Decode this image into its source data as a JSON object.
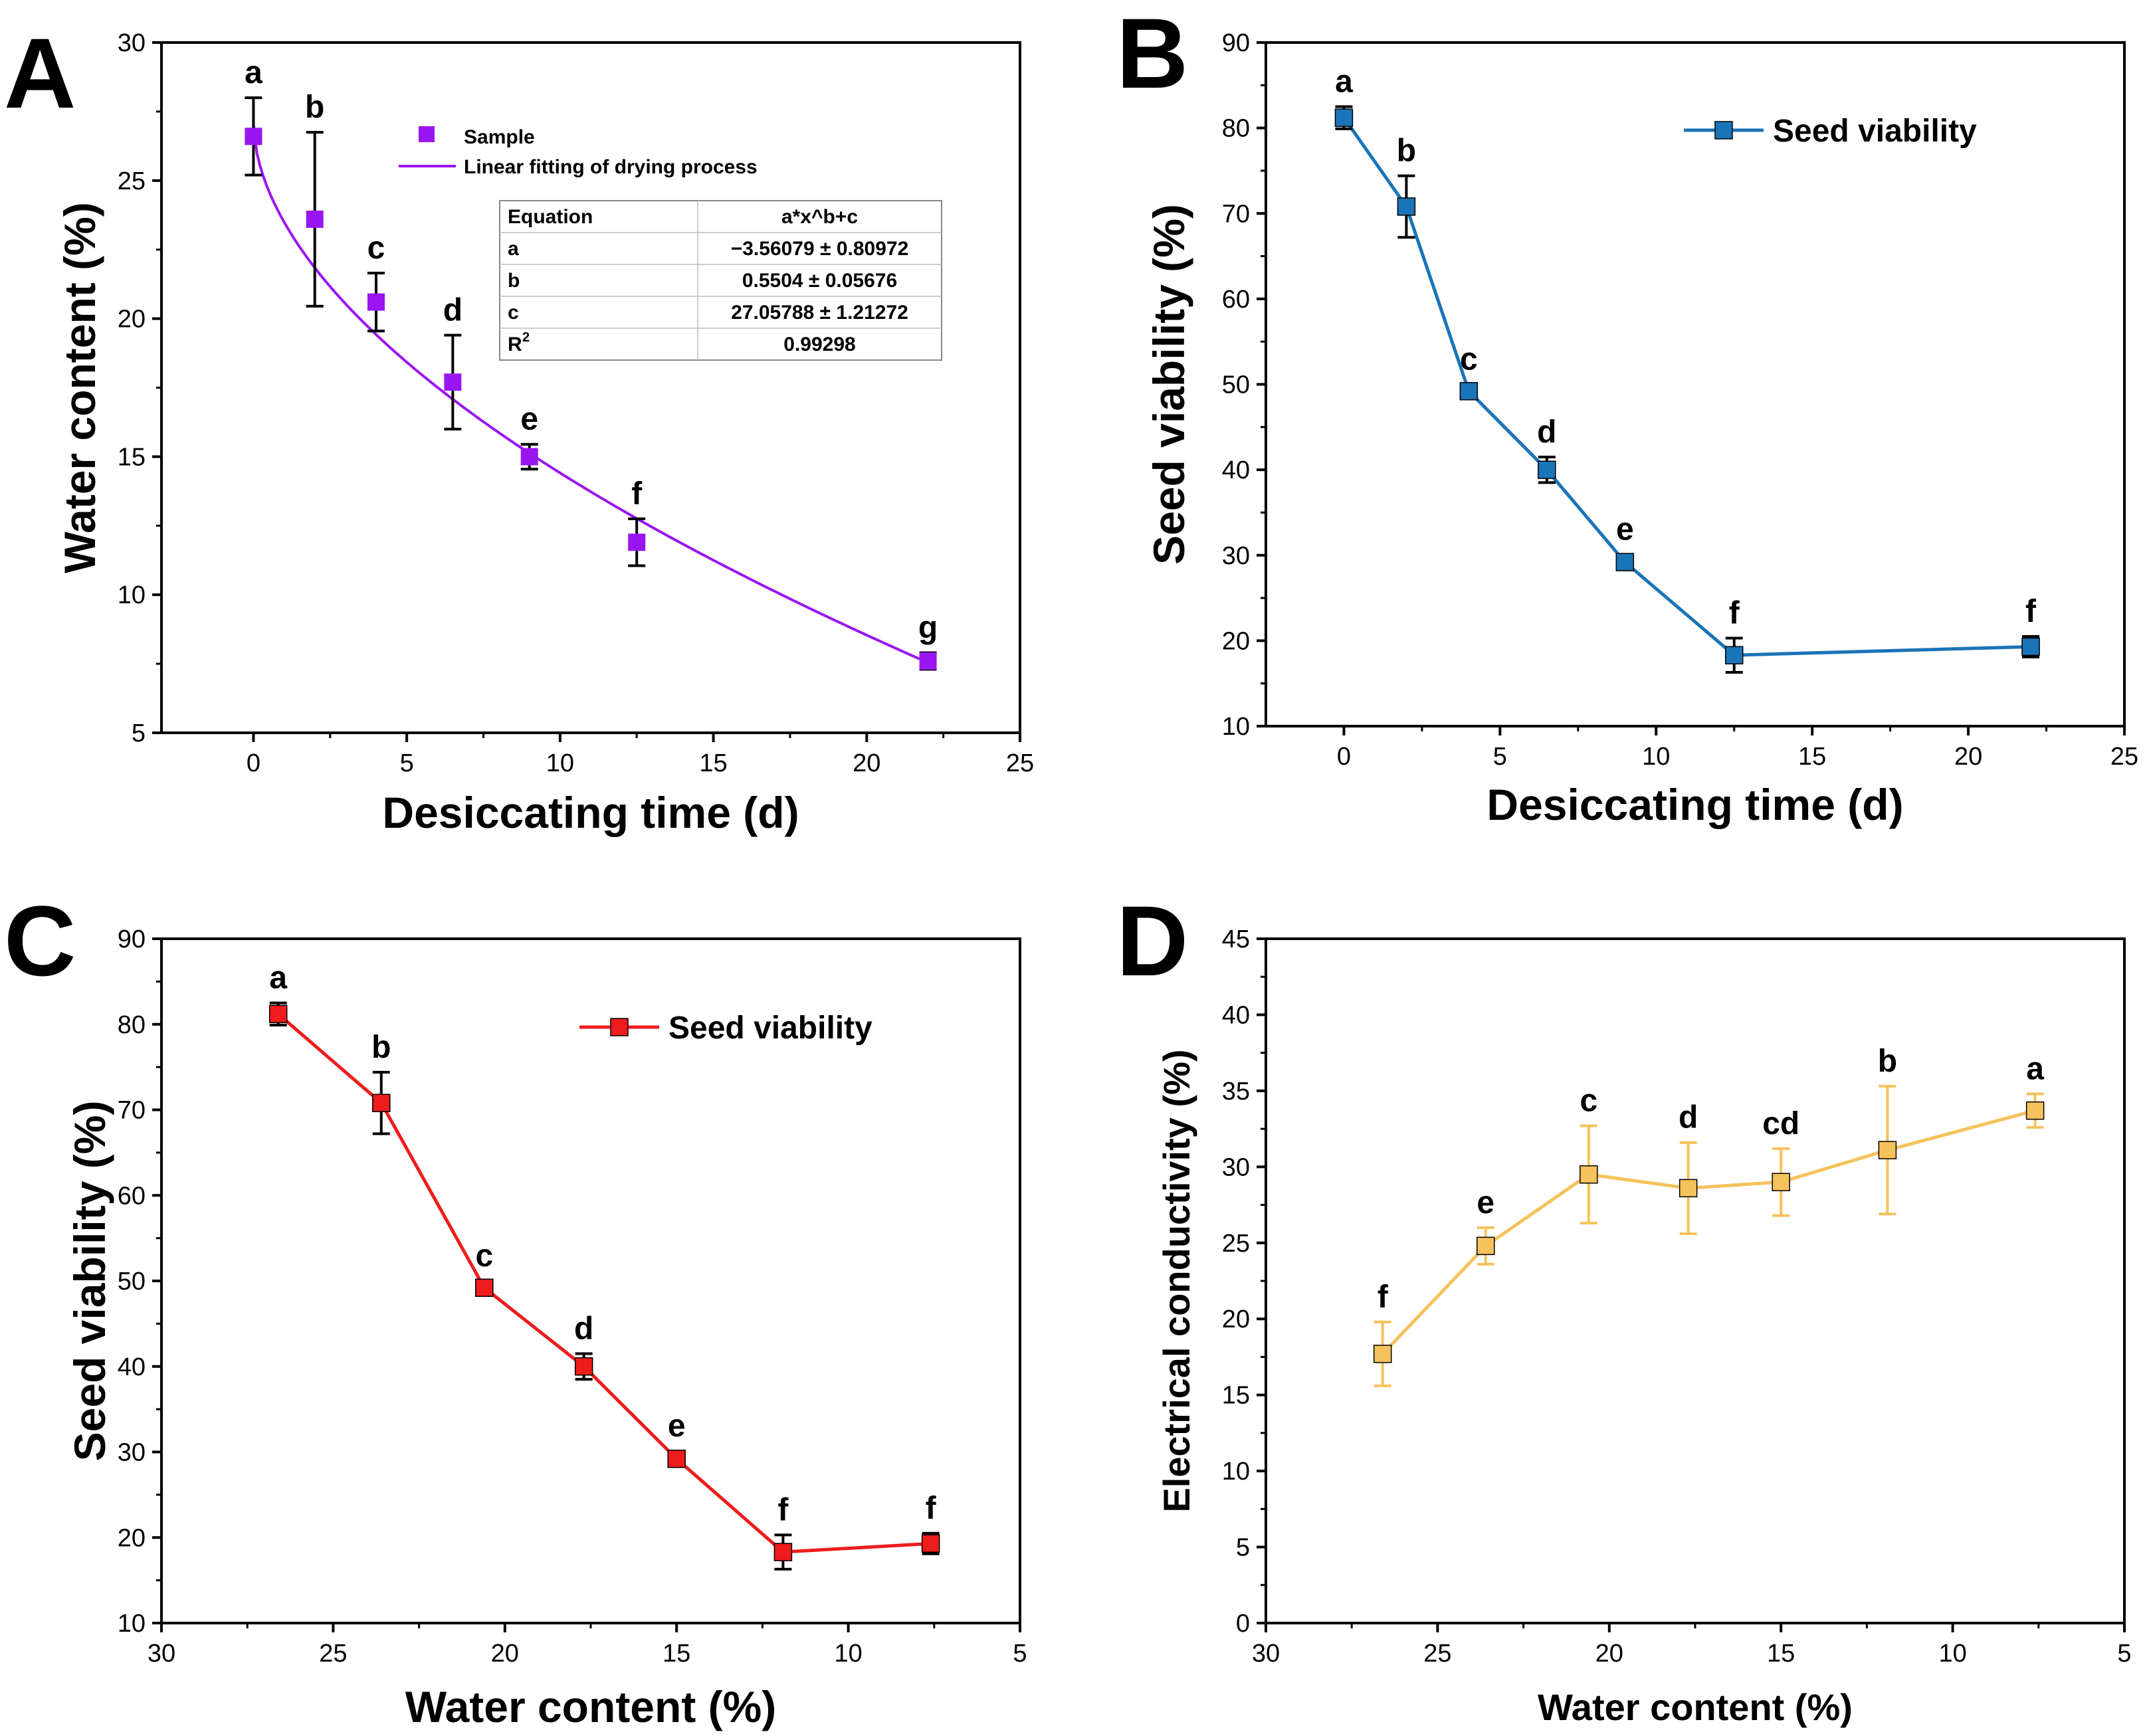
{
  "chart_data": [
    {
      "panel": "A",
      "type": "scatter",
      "xlabel": "Desiccating time (d)",
      "ylabel": "Water content (%)",
      "xlim": [
        -3,
        25
      ],
      "ylim": [
        5,
        30
      ],
      "xticks": [
        0,
        5,
        10,
        15,
        20,
        25
      ],
      "yticks": [
        5,
        10,
        15,
        20,
        25,
        30
      ],
      "color": "#9a16f0",
      "series": [
        {
          "name": "Sample",
          "x": [
            0,
            2,
            4,
            6.5,
            9,
            12.5,
            22
          ],
          "y": [
            26.6,
            23.6,
            20.6,
            17.7,
            15.0,
            11.9,
            7.6
          ],
          "err": [
            1.4,
            3.15,
            1.05,
            1.7,
            0.45,
            0.85,
            0.3
          ],
          "letters": [
            "a",
            "b",
            "c",
            "d",
            "e",
            "f",
            "g"
          ]
        },
        {
          "name": "Linear fitting of drying process",
          "fit": {
            "a": -3.56079,
            "b": 0.5504,
            "c": 27.05788
          }
        }
      ],
      "fit_table": {
        "header": [
          "Equation",
          "a*x^b+c"
        ],
        "rows": [
          {
            "label": "a",
            "value": "−3.56079 ± 0.80972"
          },
          {
            "label": "b",
            "value": "0.5504 ± 0.05676"
          },
          {
            "label": "c",
            "value": "27.05788 ± 1.21272"
          },
          {
            "label": "R",
            "sup": "2",
            "value": "0.99298"
          }
        ]
      }
    },
    {
      "panel": "B",
      "type": "line",
      "xlabel": "Desiccating time (d)",
      "ylabel": "Seed viability (%)",
      "xlim": [
        -2.5,
        25
      ],
      "ylim": [
        10,
        90
      ],
      "xticks": [
        0,
        5,
        10,
        15,
        20,
        25
      ],
      "yticks": [
        10,
        20,
        30,
        40,
        50,
        60,
        70,
        80,
        90
      ],
      "color": "#1a74b8",
      "series": [
        {
          "name": "Seed viability",
          "x": [
            0,
            2,
            4,
            6.5,
            9,
            12.5,
            22
          ],
          "y": [
            81.2,
            70.8,
            49.2,
            40.0,
            29.2,
            18.3,
            19.3
          ],
          "err": [
            1.3,
            3.6,
            0.8,
            1.5,
            0.9,
            2.0,
            1.2
          ],
          "letters": [
            "a",
            "b",
            "c",
            "d",
            "e",
            "f",
            "f"
          ]
        }
      ]
    },
    {
      "panel": "C",
      "type": "line",
      "xlabel": "Water content (%)",
      "ylabel": "Seed viability (%)",
      "xlim": [
        30,
        5
      ],
      "ylim": [
        10,
        90
      ],
      "xticks": [
        30,
        25,
        20,
        15,
        10,
        5
      ],
      "yticks": [
        10,
        20,
        30,
        40,
        50,
        60,
        70,
        80,
        90
      ],
      "color": "#ee1c1c",
      "series": [
        {
          "name": "Seed viability",
          "x": [
            26.6,
            23.6,
            20.6,
            17.7,
            15.0,
            11.9,
            7.6
          ],
          "y": [
            81.2,
            70.8,
            49.2,
            40.0,
            29.2,
            18.3,
            19.3
          ],
          "err": [
            1.3,
            3.6,
            0.8,
            1.5,
            0.9,
            2.0,
            1.2
          ],
          "letters": [
            "a",
            "b",
            "c",
            "d",
            "e",
            "f",
            "f"
          ]
        }
      ]
    },
    {
      "panel": "D",
      "type": "line",
      "xlabel": "Water content (%)",
      "ylabel": "Electrical conductivity (%)",
      "xlim": [
        30,
        5
      ],
      "ylim": [
        0,
        45
      ],
      "xticks": [
        30,
        25,
        20,
        15,
        10,
        5
      ],
      "yticks": [
        0,
        5,
        10,
        15,
        20,
        25,
        30,
        35,
        40,
        45
      ],
      "color": "#f5c25c",
      "series": [
        {
          "name": "Electrical conductivity",
          "x": [
            26.6,
            23.6,
            20.6,
            17.7,
            15.0,
            11.9,
            7.6
          ],
          "y": [
            17.7,
            24.8,
            29.5,
            28.6,
            29.0,
            31.1,
            33.7
          ],
          "err": [
            2.1,
            1.2,
            3.2,
            3.0,
            2.2,
            4.2,
            1.1
          ],
          "letters": [
            "f",
            "e",
            "c",
            "d",
            "cd",
            "b",
            "a"
          ]
        }
      ]
    }
  ]
}
